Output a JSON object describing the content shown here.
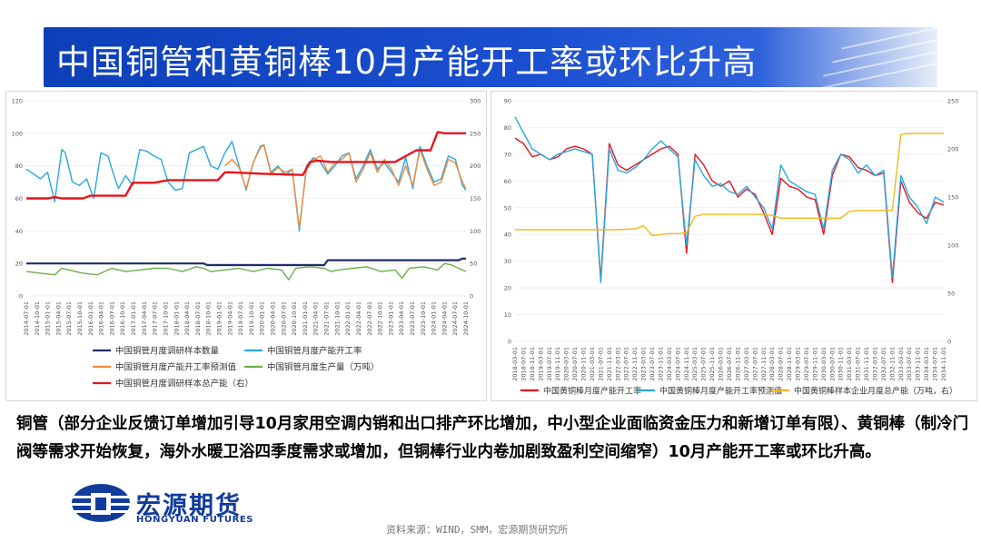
{
  "page": {
    "title": "中国铜管和黄铜棒10月产能开工率或环比升高",
    "body_text": "铜管（部分企业反馈订单增加引导10月家用空调内销和出口排产环比增加，中小型企业面临资金压力和新增订单有限）、黄铜棒（制冷门阀等需求开始恢复，海外水暖卫浴四季度需求或增加，但铜棒行业内卷加剧致盈利空间缩窄）10月产能开工率或环比升高。",
    "logo_name": "宏源期货",
    "logo_en": "HONGYUAN FUTURES",
    "source": "资料来源：WIND，SMM，宏源期货研究所",
    "brand_color": "#123c9c",
    "title_bar_color": "#1a4fd0"
  },
  "chart_data": [
    {
      "type": "line",
      "x_tick_labels": [
        "2014-07-01",
        "2014-10-01",
        "2015-01-01",
        "2015-04-01",
        "2015-07-01",
        "2015-10-01",
        "2016-01-01",
        "2016-04-01",
        "2016-07-01",
        "2016-10-01",
        "2017-01-01",
        "2017-04-01",
        "2017-07-01",
        "2017-10-01",
        "2018-01-01",
        "2018-04-01",
        "2018-07-01",
        "2018-10-01",
        "2019-01-01",
        "2019-04-01",
        "2019-07-01",
        "2019-10-01",
        "2020-01-01",
        "2020-04-01",
        "2020-07-01",
        "2020-10-01",
        "2021-01-01",
        "2021-04-01",
        "2021-07-01",
        "2021-10-01",
        "2022-01-01",
        "2022-04-01",
        "2022-07-01",
        "2022-10-01",
        "2023-01-01",
        "2023-04-01",
        "2023-07-01",
        "2023-10-01",
        "2024-01-01",
        "2024-04-01",
        "2024-07-01",
        "2024-10-01"
      ],
      "y_left_ticks": [
        "0",
        "20",
        "40",
        "60",
        "80",
        "100",
        "120"
      ],
      "y_right_ticks": [
        "0",
        "50",
        "100",
        "150",
        "200",
        "250",
        "300"
      ],
      "ylim_left": [
        0,
        120
      ],
      "ylim_right": [
        0,
        300
      ],
      "legend_position": "bottom",
      "series": [
        {
          "name": "中国铜管月度调研样本数量",
          "axis": "left",
          "color": "#1f2d6b",
          "x": [
            0,
            50,
            51,
            84,
            85,
            122,
            123,
            124
          ],
          "y": [
            20,
            20,
            19,
            19,
            22,
            22,
            23,
            23
          ]
        },
        {
          "name": "中国铜管月度产能开工率",
          "axis": "left",
          "color": "#29a8e0",
          "x": [
            0,
            2,
            4,
            6,
            8,
            10,
            11,
            13,
            15,
            17,
            19,
            21,
            23,
            25,
            26,
            28,
            30,
            32,
            34,
            36,
            38,
            40,
            42,
            44,
            46,
            48,
            50,
            52,
            54,
            56,
            58,
            60,
            62,
            64,
            66,
            67,
            69,
            71,
            73,
            75,
            77,
            79,
            81,
            83,
            85,
            87,
            89,
            91,
            93,
            95,
            97,
            99,
            101,
            103,
            105,
            107,
            109,
            111,
            113,
            115,
            117,
            119,
            121,
            123,
            124
          ],
          "y": [
            78,
            75,
            72,
            76,
            58,
            90,
            88,
            70,
            68,
            72,
            60,
            88,
            86,
            72,
            66,
            74,
            68,
            90,
            89,
            86,
            84,
            70,
            65,
            66,
            88,
            90,
            92,
            80,
            78,
            88,
            95,
            80,
            65,
            82,
            92,
            93,
            76,
            80,
            74,
            78,
            40,
            80,
            85,
            82,
            75,
            80,
            86,
            88,
            72,
            80,
            90,
            78,
            82,
            76,
            70,
            85,
            66,
            92,
            80,
            70,
            72,
            86,
            84,
            68,
            65
          ]
        },
        {
          "name": "中国铜管月度产能开工率预测值",
          "axis": "left",
          "color": "#f08b3c",
          "x": [
            56,
            58,
            60,
            62,
            64,
            66,
            67,
            69,
            71,
            73,
            75,
            77,
            79,
            81,
            83,
            85,
            87,
            89,
            91,
            93,
            95,
            97,
            99,
            101,
            103,
            105,
            107,
            109,
            111,
            113,
            115,
            117,
            119,
            121,
            123,
            124
          ],
          "y": [
            80,
            84,
            79,
            66,
            82,
            91,
            93,
            75,
            79,
            76,
            78,
            42,
            78,
            84,
            86,
            76,
            82,
            84,
            88,
            70,
            78,
            88,
            76,
            84,
            78,
            68,
            80,
            68,
            90,
            78,
            68,
            70,
            84,
            82,
            70,
            66
          ]
        },
        {
          "name": "中国铜管月度生产量（万吨）",
          "axis": "left",
          "color": "#6ab04c",
          "x": [
            0,
            4,
            8,
            10,
            12,
            16,
            20,
            24,
            28,
            32,
            36,
            40,
            44,
            48,
            50,
            52,
            56,
            60,
            64,
            68,
            72,
            74,
            76,
            80,
            84,
            86,
            88,
            92,
            96,
            100,
            104,
            106,
            108,
            112,
            116,
            118,
            120,
            124
          ],
          "y": [
            15,
            14,
            13,
            17,
            16,
            14,
            13,
            17,
            15,
            16,
            17,
            17,
            15,
            18,
            17,
            15,
            16,
            17,
            15,
            17,
            16,
            10,
            17,
            18,
            17,
            15,
            16,
            17,
            18,
            15,
            16,
            11,
            17,
            18,
            16,
            20,
            19,
            15
          ]
        },
        {
          "name": "中国铜管月度调研样本总产能（右）",
          "axis": "right",
          "color": "#e8141c",
          "x": [
            0,
            6,
            8,
            10,
            16,
            18,
            20,
            28,
            30,
            36,
            40,
            44,
            54,
            56,
            58,
            66,
            78,
            80,
            82,
            86,
            100,
            104,
            110,
            112,
            114,
            116,
            118,
            124
          ],
          "y": [
            150,
            150,
            152,
            150,
            150,
            154,
            154,
            154,
            174,
            174,
            178,
            178,
            178,
            190,
            190,
            188,
            186,
            206,
            208,
            206,
            206,
            206,
            224,
            224,
            224,
            252,
            250,
            250
          ]
        }
      ]
    },
    {
      "type": "line",
      "x_tick_labels": [
        "2018-03-01",
        "2018-07-01",
        "2018-11-01",
        "2019-03-01",
        "2019-07-01",
        "2019-11-01",
        "2020-03-01",
        "2020-07-01",
        "2020-11-01",
        "2021-03-01",
        "2021-07-01",
        "2021-11-01",
        "2022-03-01",
        "2022-07-01",
        "2022-11-01",
        "2023-03-01",
        "2023-07-01",
        "2023-11-01",
        "2024-03-01",
        "2024-07-01",
        "2024-11-01",
        "2025-03-01",
        "2025-07-01",
        "2025-11-01",
        "2026-03-01",
        "2026-07-01",
        "2026-11-01",
        "2027-03-01",
        "2027-07-01",
        "2027-11-01",
        "2028-03-01",
        "2028-07-01",
        "2028-11-01",
        "2029-03-01",
        "2029-07-01",
        "2029-11-01",
        "2030-03-01",
        "2030-07-01",
        "2030-11-01",
        "2031-03-01",
        "2031-07-01",
        "2031-11-01",
        "2032-03-01",
        "2032-07-01",
        "2032-11-01",
        "2033-03-01",
        "2033-07-01",
        "2033-11-01",
        "2034-03-01",
        "2034-07-01",
        "2034-11-01"
      ],
      "y_left_ticks": [
        "0",
        "10",
        "20",
        "30",
        "40",
        "50",
        "60",
        "70",
        "80",
        "90"
      ],
      "y_right_ticks": [
        "0",
        "50",
        "100",
        "150",
        "200",
        "250"
      ],
      "ylim_left": [
        0,
        90
      ],
      "ylim_right": [
        0,
        250
      ],
      "legend_position": "bottom",
      "series": [
        {
          "name": "中国黄铜棒月度产能开工率",
          "axis": "left",
          "color": "#e8141c",
          "x": [
            0,
            1,
            2,
            3,
            4,
            5,
            6,
            7,
            8,
            9,
            10,
            11,
            12,
            13,
            14,
            15,
            16,
            17,
            18,
            19,
            20,
            21,
            22,
            23,
            24,
            25,
            26,
            27,
            28,
            29,
            30,
            31,
            32,
            33,
            34,
            35,
            36,
            37,
            38,
            39,
            40,
            41,
            42,
            43,
            44,
            45,
            46,
            47,
            48,
            49,
            50
          ],
          "y": [
            76,
            74,
            69,
            70,
            68,
            69,
            72,
            73,
            72,
            70,
            23,
            74,
            66,
            64,
            66,
            68,
            70,
            72,
            73,
            70,
            33,
            70,
            66,
            60,
            58,
            60,
            54,
            57,
            55,
            48,
            40,
            61,
            58,
            57,
            54,
            53,
            40,
            62,
            70,
            69,
            65,
            64,
            62,
            63,
            22,
            60,
            52,
            48,
            46,
            52,
            51
          ]
        },
        {
          "name": "中国黄铜棒月度产能开工率预测值",
          "axis": "left",
          "color": "#29a8e0",
          "x": [
            0,
            1,
            2,
            3,
            4,
            5,
            6,
            7,
            8,
            9,
            10,
            11,
            12,
            13,
            14,
            15,
            16,
            17,
            18,
            19,
            20,
            21,
            22,
            23,
            24,
            25,
            26,
            27,
            28,
            29,
            30,
            31,
            32,
            33,
            34,
            35,
            36,
            37,
            38,
            39,
            40,
            41,
            42,
            43,
            44,
            45,
            46,
            47,
            48,
            49,
            50
          ],
          "y": [
            84,
            78,
            72,
            70,
            68,
            70,
            71,
            72,
            71,
            70,
            22,
            72,
            64,
            63,
            65,
            68,
            72,
            75,
            72,
            69,
            36,
            68,
            62,
            58,
            59,
            56,
            55,
            58,
            54,
            50,
            42,
            66,
            60,
            58,
            56,
            55,
            42,
            64,
            70,
            68,
            63,
            66,
            62,
            64,
            24,
            62,
            54,
            50,
            44,
            54,
            52
          ]
        },
        {
          "name": "中国黄铜棒样本企业月度总产能（万吨，右）",
          "axis": "right",
          "color": "#f2b81c",
          "x": [
            0,
            2,
            4,
            6,
            8,
            10,
            12,
            14,
            15,
            16,
            18,
            19,
            20,
            21,
            22,
            24,
            26,
            28,
            30,
            31,
            32,
            34,
            36,
            38,
            39,
            40,
            42,
            43,
            44,
            45,
            46,
            48,
            49,
            50
          ],
          "y": [
            116,
            116,
            116,
            116,
            116,
            116,
            116,
            117,
            120,
            110,
            112,
            112,
            113,
            130,
            132,
            132,
            132,
            132,
            131,
            128,
            128,
            128,
            128,
            128,
            135,
            136,
            136,
            136,
            136,
            215,
            216,
            216,
            216,
            216
          ]
        }
      ]
    }
  ]
}
